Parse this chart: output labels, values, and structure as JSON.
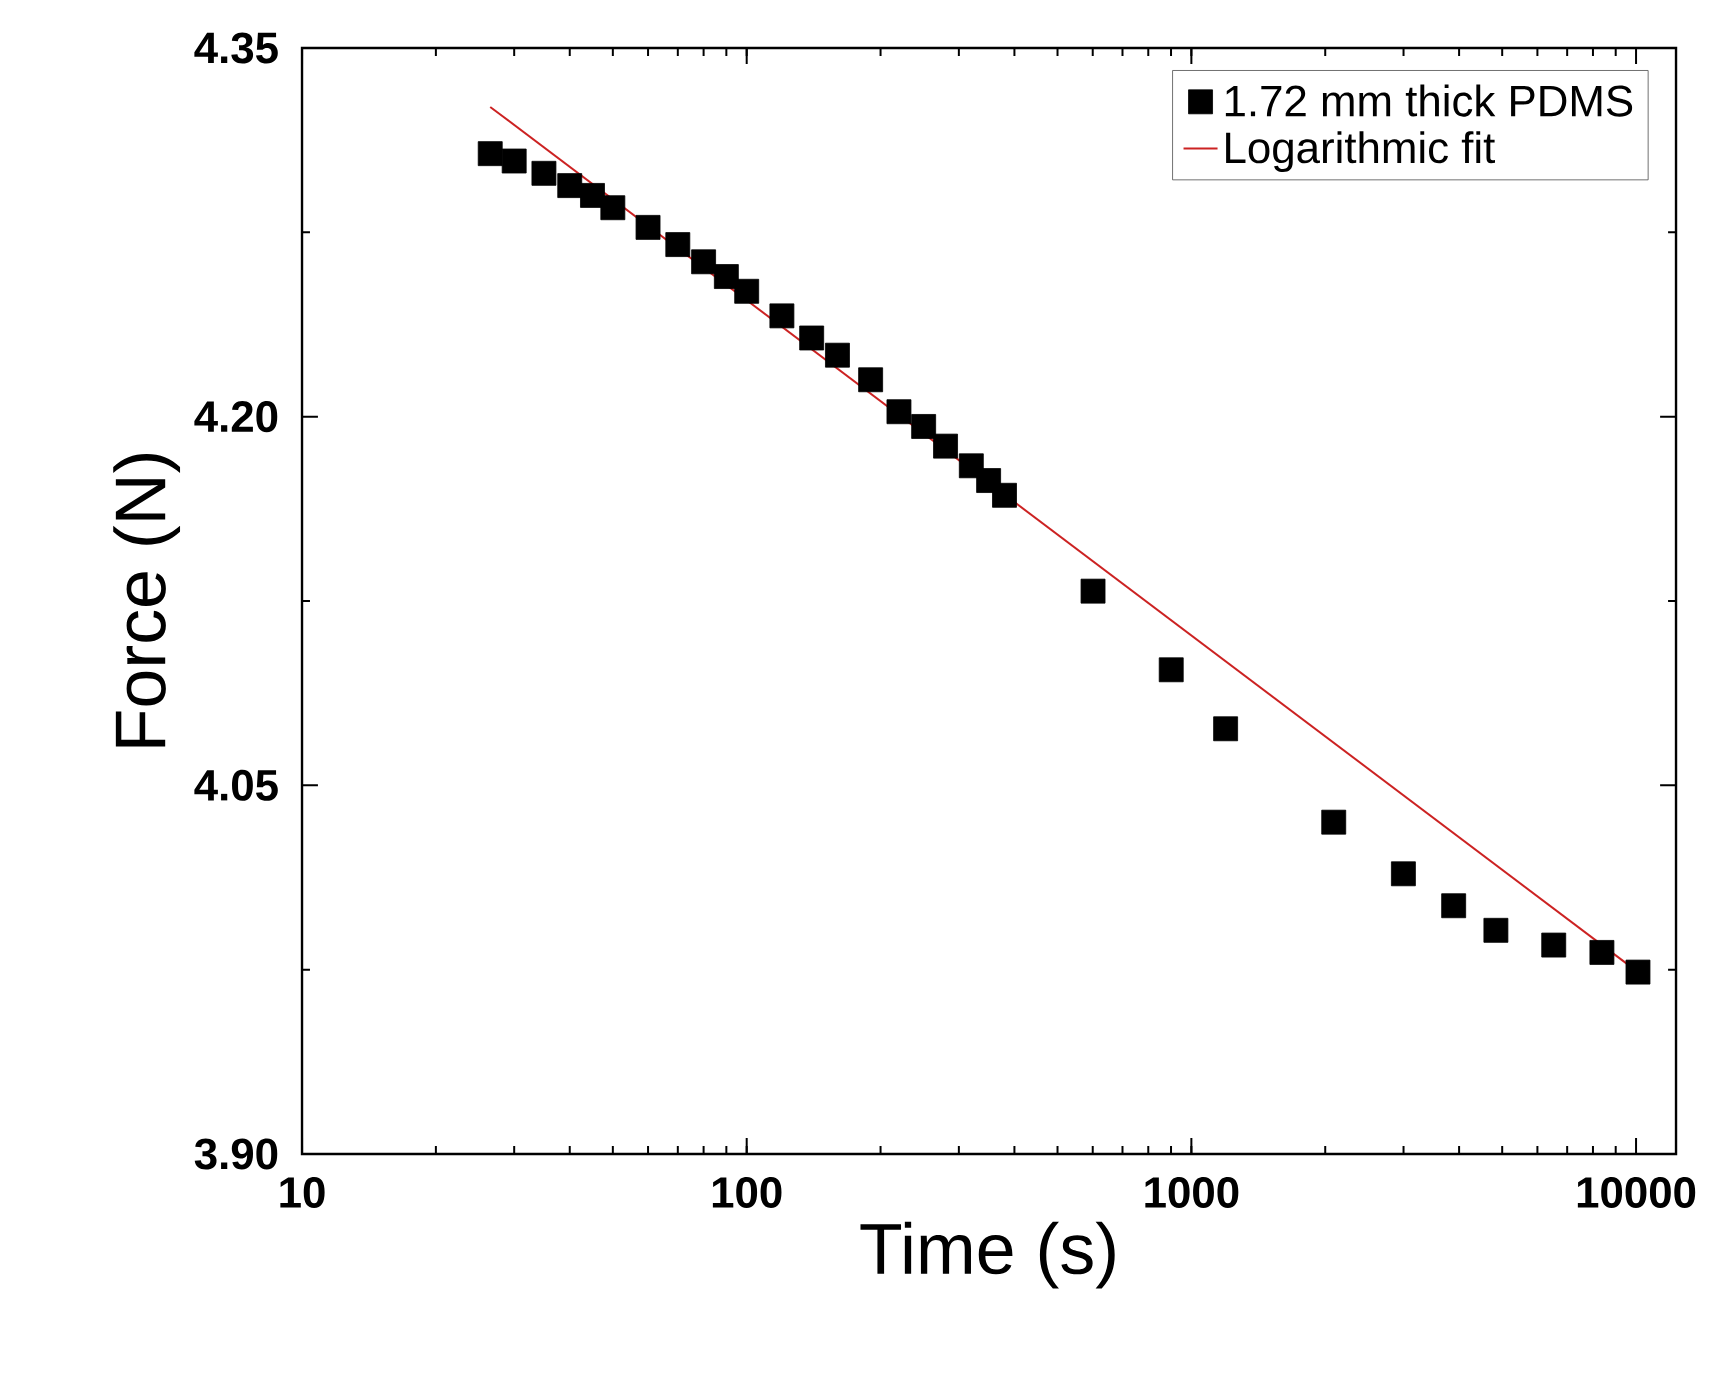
{
  "chart_data": {
    "type": "scatter",
    "xlabel": "Time (s)",
    "ylabel": "Force (N)",
    "log": "x",
    "xlim": [
      10,
      12300
    ],
    "ylim": [
      3.9,
      4.35
    ],
    "xticks": [
      10,
      100,
      1000,
      10000
    ],
    "yticks": [
      {
        "value": 3.9,
        "label": "3.90"
      },
      4.05,
      {
        "value": 4.2,
        "label": "4.20"
      },
      4.35
    ],
    "legend": "top right",
    "series": [
      {
        "name": "1.72 mm thick PDMS",
        "color": "#000000",
        "marker": "square",
        "x": [
          26.5,
          30,
          35,
          40,
          45,
          50,
          60,
          70,
          80,
          90,
          100,
          120,
          140,
          160,
          190,
          220,
          250,
          280,
          320,
          350,
          380,
          601,
          901,
          1194,
          2090,
          2998,
          3890,
          4840,
          6530,
          8380,
          10100
        ],
        "values": [
          4.307,
          4.304,
          4.299,
          4.294,
          4.29,
          4.285,
          4.277,
          4.27,
          4.263,
          4.257,
          4.251,
          4.241,
          4.232,
          4.225,
          4.215,
          4.202,
          4.196,
          4.188,
          4.18,
          4.174,
          4.168,
          4.129,
          4.097,
          4.073,
          4.035,
          4.014,
          4.001,
          3.991,
          3.985,
          3.982,
          3.974
        ]
      },
      {
        "name": "Logarithmic fit",
        "type": "line",
        "color": "#cc2222",
        "marker": "none",
        "x": [
          26.5,
          10100
        ],
        "values": [
          4.326,
          3.974
        ]
      }
    ]
  }
}
